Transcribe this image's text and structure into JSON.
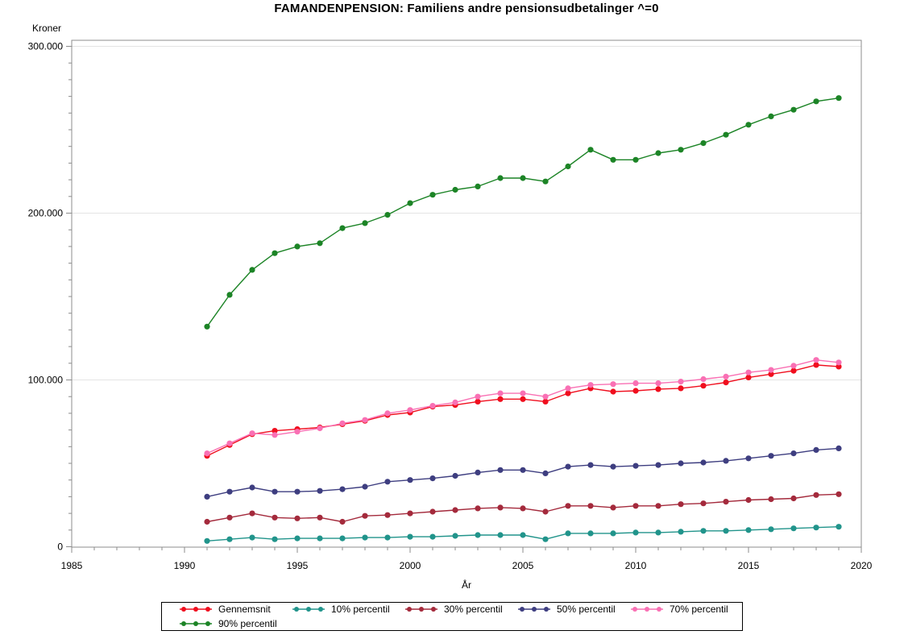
{
  "title": "FAMANDENPENSION: Familiens andre pensionsudbetalinger ^=0",
  "y_axis": {
    "title": "Kroner",
    "tick_values": [
      0,
      100000,
      200000,
      300000
    ],
    "tick_labels": [
      "0",
      "100.000",
      "200.000",
      "300.000"
    ],
    "minor_tick_step": 10000
  },
  "x_axis": {
    "title": "År",
    "tick_values": [
      1985,
      1990,
      1995,
      2000,
      2005,
      2010,
      2015,
      2020
    ],
    "tick_labels": [
      "1985",
      "1990",
      "1995",
      "2000",
      "2005",
      "2010",
      "2015",
      "2020"
    ],
    "minor_tick_step": 1
  },
  "legend": [
    {
      "label": "Gennemsnit",
      "color": "#f00e1e"
    },
    {
      "label": "10% percentil",
      "color": "#21948b"
    },
    {
      "label": "30% percentil",
      "color": "#a42a3c"
    },
    {
      "label": "50% percentil",
      "color": "#3e3e80"
    },
    {
      "label": "70% percentil",
      "color": "#f970b4"
    },
    {
      "label": "90% percentil",
      "color": "#1c8426"
    }
  ],
  "colors": {
    "background": "#ffffff",
    "frame": "#8c8c8c",
    "gridline": "#e4e4e4",
    "tick": "#8c8c8c",
    "text": "#000000",
    "legend_border": "#000000"
  },
  "chart_data": {
    "type": "line",
    "title": "FAMANDENPENSION: Familiens andre pensionsudbetalinger ^=0",
    "xlabel": "År",
    "ylabel": "Kroner",
    "xlim": [
      1985,
      2020
    ],
    "ylim": [
      0,
      300000
    ],
    "grid": "horizontal major gridlines every 100.000",
    "legend_position": "bottom",
    "marker": "filled-circle",
    "x": [
      1991,
      1992,
      1993,
      1994,
      1995,
      1996,
      1997,
      1998,
      1999,
      2000,
      2001,
      2002,
      2003,
      2004,
      2005,
      2006,
      2007,
      2008,
      2009,
      2010,
      2011,
      2012,
      2013,
      2014,
      2015,
      2016,
      2017,
      2018,
      2019
    ],
    "series": [
      {
        "name": "Gennemsnit",
        "color": "#f00e1e",
        "values": [
          54500,
          61000,
          67500,
          69500,
          70500,
          71500,
          73500,
          75500,
          79000,
          80500,
          84000,
          85000,
          87000,
          88500,
          88500,
          87000,
          92000,
          95000,
          93000,
          93500,
          94500,
          95000,
          96500,
          98500,
          101500,
          103500,
          105500,
          109000,
          108000
        ]
      },
      {
        "name": "10% percentil",
        "color": "#21948b",
        "values": [
          3500,
          4500,
          5500,
          4500,
          5000,
          5000,
          5000,
          5500,
          5500,
          6000,
          6000,
          6500,
          7000,
          7000,
          7000,
          4500,
          8000,
          8000,
          8000,
          8500,
          8500,
          9000,
          9500,
          9500,
          10000,
          10500,
          11000,
          11500,
          12000
        ]
      },
      {
        "name": "30% percentil",
        "color": "#a42a3c",
        "values": [
          15000,
          17500,
          20000,
          17500,
          17000,
          17500,
          15000,
          18500,
          19000,
          20000,
          21000,
          22000,
          23000,
          23500,
          23000,
          21000,
          24500,
          24500,
          23500,
          24500,
          24500,
          25500,
          26000,
          27000,
          28000,
          28500,
          29000,
          31000,
          31500
        ]
      },
      {
        "name": "50% percentil",
        "color": "#3e3e80",
        "values": [
          30000,
          33000,
          35500,
          33000,
          33000,
          33500,
          34500,
          36000,
          39000,
          40000,
          41000,
          42500,
          44500,
          46000,
          46000,
          44000,
          48000,
          49000,
          48000,
          48500,
          49000,
          50000,
          50500,
          51500,
          53000,
          54500,
          56000,
          58000,
          59000
        ]
      },
      {
        "name": "70% percentil",
        "color": "#f970b4",
        "values": [
          56000,
          62000,
          68000,
          67000,
          69000,
          71000,
          74000,
          76000,
          80000,
          82000,
          84500,
          86500,
          90000,
          92000,
          92000,
          90000,
          95000,
          97000,
          97500,
          98000,
          98000,
          99000,
          100500,
          102000,
          104500,
          106000,
          108500,
          112000,
          110500
        ]
      },
      {
        "name": "90% percentil",
        "color": "#1c8426",
        "values": [
          132000,
          151000,
          166000,
          176000,
          180000,
          182000,
          191000,
          194000,
          199000,
          206000,
          211000,
          214000,
          216000,
          221000,
          221000,
          219000,
          228000,
          238000,
          232000,
          232000,
          236000,
          238000,
          242000,
          247000,
          253000,
          258000,
          262000,
          267000,
          269000
        ]
      }
    ]
  }
}
